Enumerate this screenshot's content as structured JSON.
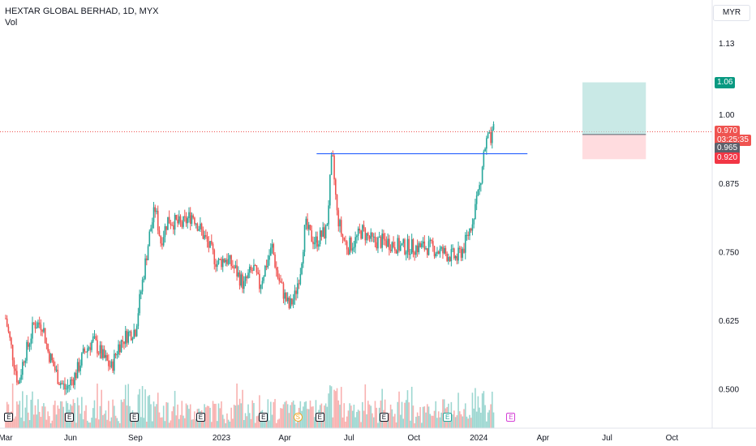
{
  "header": {
    "title": "HEXTAR GLOBAL BERHAD, 1D, MYX",
    "vol_label": "Vol"
  },
  "currency_button": "MYR",
  "chart_data": {
    "type": "candlestick",
    "ylim": [
      0.43,
      1.21
    ],
    "y_ticks": [
      "1.13",
      "1.00",
      "0.875",
      "0.750",
      "0.625",
      "0.500"
    ],
    "y_tick_values": [
      1.13,
      1.0,
      0.875,
      0.75,
      0.625,
      0.5
    ],
    "x_ticks": [
      "Mar",
      "Jun",
      "Sep",
      "2023",
      "Apr",
      "Jul",
      "Oct",
      "2024",
      "Apr",
      "Jul",
      "Oct"
    ],
    "x_tick_days": [
      0,
      92,
      184,
      306,
      396,
      487,
      579,
      671,
      762,
      853,
      945
    ],
    "x_day_range": [
      -8,
      1002
    ],
    "price_path": [
      [
        0,
        0.63
      ],
      [
        18,
        0.51
      ],
      [
        26,
        0.56
      ],
      [
        32,
        0.58
      ],
      [
        40,
        0.62
      ],
      [
        52,
        0.62
      ],
      [
        60,
        0.57
      ],
      [
        75,
        0.52
      ],
      [
        85,
        0.5
      ],
      [
        100,
        0.53
      ],
      [
        112,
        0.57
      ],
      [
        124,
        0.59
      ],
      [
        138,
        0.56
      ],
      [
        150,
        0.54
      ],
      [
        160,
        0.58
      ],
      [
        172,
        0.6
      ],
      [
        184,
        0.61
      ],
      [
        192,
        0.68
      ],
      [
        205,
        0.79
      ],
      [
        212,
        0.83
      ],
      [
        220,
        0.77
      ],
      [
        230,
        0.81
      ],
      [
        250,
        0.8
      ],
      [
        265,
        0.82
      ],
      [
        285,
        0.77
      ],
      [
        300,
        0.73
      ],
      [
        312,
        0.74
      ],
      [
        325,
        0.72
      ],
      [
        338,
        0.69
      ],
      [
        345,
        0.71
      ],
      [
        352,
        0.72
      ],
      [
        360,
        0.69
      ],
      [
        370,
        0.73
      ],
      [
        378,
        0.76
      ],
      [
        385,
        0.71
      ],
      [
        393,
        0.68
      ],
      [
        402,
        0.65
      ],
      [
        410,
        0.67
      ],
      [
        418,
        0.72
      ],
      [
        425,
        0.8
      ],
      [
        432,
        0.78
      ],
      [
        440,
        0.77
      ],
      [
        447,
        0.78
      ],
      [
        455,
        0.79
      ],
      [
        463,
        0.93
      ],
      [
        470,
        0.82
      ],
      [
        477,
        0.78
      ],
      [
        485,
        0.76
      ],
      [
        495,
        0.77
      ],
      [
        505,
        0.79
      ],
      [
        520,
        0.77
      ],
      [
        540,
        0.77
      ],
      [
        560,
        0.76
      ],
      [
        580,
        0.76
      ],
      [
        600,
        0.76
      ],
      [
        620,
        0.75
      ],
      [
        640,
        0.74
      ],
      [
        650,
        0.76
      ],
      [
        660,
        0.8
      ],
      [
        668,
        0.85
      ],
      [
        674,
        0.88
      ],
      [
        678,
        0.93
      ],
      [
        684,
        0.96
      ],
      [
        688,
        0.95
      ],
      [
        692,
        0.97
      ]
    ],
    "resistance_level": 0.93,
    "resistance_days": [
      441,
      740
    ],
    "trade_setup": {
      "entry": 0.965,
      "target": 1.06,
      "stop": 0.92,
      "days": [
        818,
        908
      ]
    },
    "last_price": 0.97,
    "volume_color_up": "#26a69a",
    "volume_color_down": "#ef5350",
    "event_markers": [
      {
        "day": 4,
        "label": "E",
        "kind": "earnings"
      },
      {
        "day": 90,
        "label": "E",
        "kind": "earnings"
      },
      {
        "day": 182,
        "label": "E",
        "kind": "earnings"
      },
      {
        "day": 276,
        "label": "E",
        "kind": "earnings"
      },
      {
        "day": 365,
        "label": "E",
        "kind": "earnings"
      },
      {
        "day": 414,
        "label": "S",
        "kind": "dividend"
      },
      {
        "day": 445,
        "label": "E",
        "kind": "earnings"
      },
      {
        "day": 536,
        "label": "E",
        "kind": "earnings"
      },
      {
        "day": 626,
        "label": "E",
        "kind": "upcoming"
      },
      {
        "day": 716,
        "label": "E",
        "kind": "future"
      }
    ]
  },
  "price_tags": [
    {
      "label": "1.06",
      "value": 1.06,
      "color": "#089981"
    },
    {
      "label": "0.970",
      "value": 0.97,
      "color": "#ef5350"
    },
    {
      "label": "03:25:35",
      "value": 0.955,
      "color": "#ef5350"
    },
    {
      "label": "0.965",
      "value": 0.94,
      "color": "#5d606b"
    },
    {
      "label": "0.920",
      "value": 0.922,
      "color": "#f23645"
    }
  ]
}
